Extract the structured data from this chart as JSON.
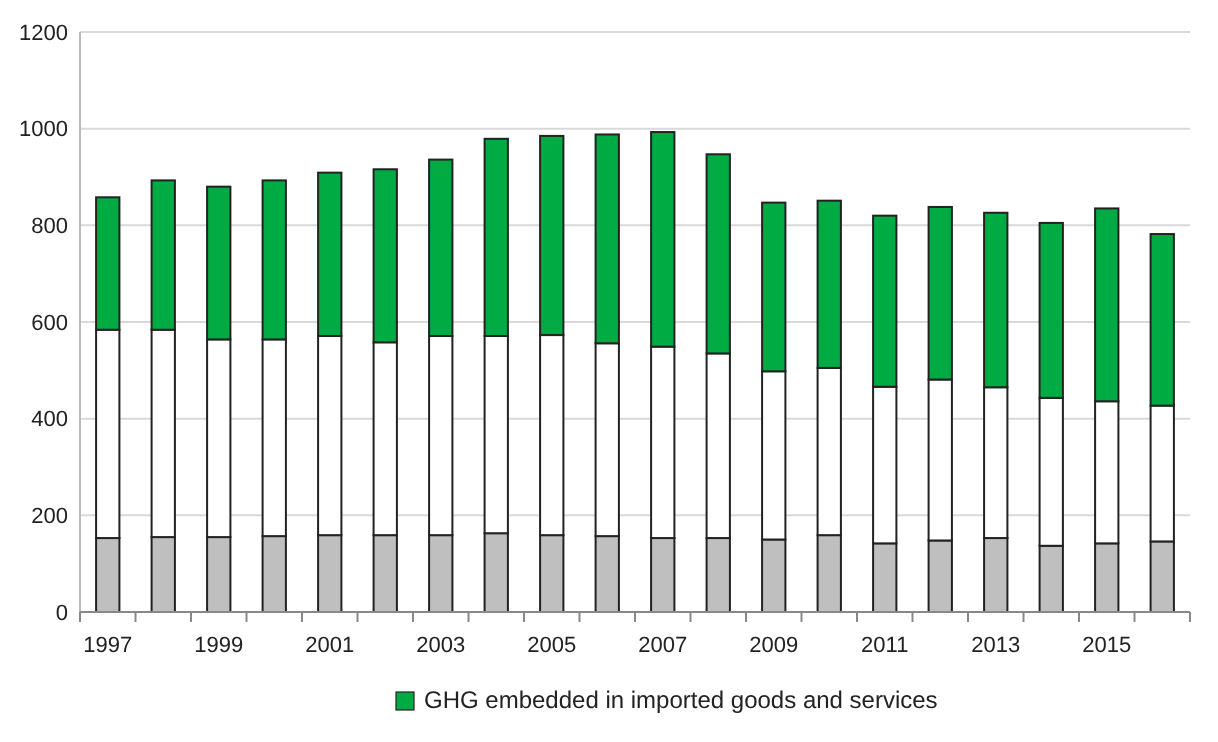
{
  "chart_data": {
    "type": "bar",
    "stacked": true,
    "categories": [
      "1997",
      null,
      "1999",
      null,
      "2001",
      null,
      "2003",
      null,
      "2005",
      null,
      "2007",
      null,
      "2009",
      null,
      "2011",
      null,
      "2013",
      null,
      "2015",
      null
    ],
    "series": [
      {
        "color": "#bfbfbf",
        "values": [
          153,
          155,
          155,
          157,
          159,
          159,
          159,
          163,
          159,
          157,
          153,
          153,
          150,
          159,
          142,
          148,
          153,
          137,
          142,
          146
        ]
      },
      {
        "color": "#ffffff",
        "values": [
          431,
          429,
          409,
          407,
          412,
          399,
          412,
          408,
          414,
          399,
          396,
          382,
          348,
          346,
          324,
          333,
          312,
          306,
          294,
          281
        ]
      },
      {
        "name": "GHG embedded in imported goods and services",
        "color": "#00ab44",
        "values": [
          274,
          309,
          316,
          329,
          338,
          358,
          365,
          408,
          412,
          432,
          444,
          412,
          349,
          346,
          354,
          357,
          361,
          362,
          399,
          355
        ]
      }
    ],
    "ylim": [
      0,
      1200
    ],
    "yticks": [
      0,
      200,
      400,
      600,
      800,
      1000,
      1200
    ],
    "grid": "y",
    "legend": "bottom"
  }
}
